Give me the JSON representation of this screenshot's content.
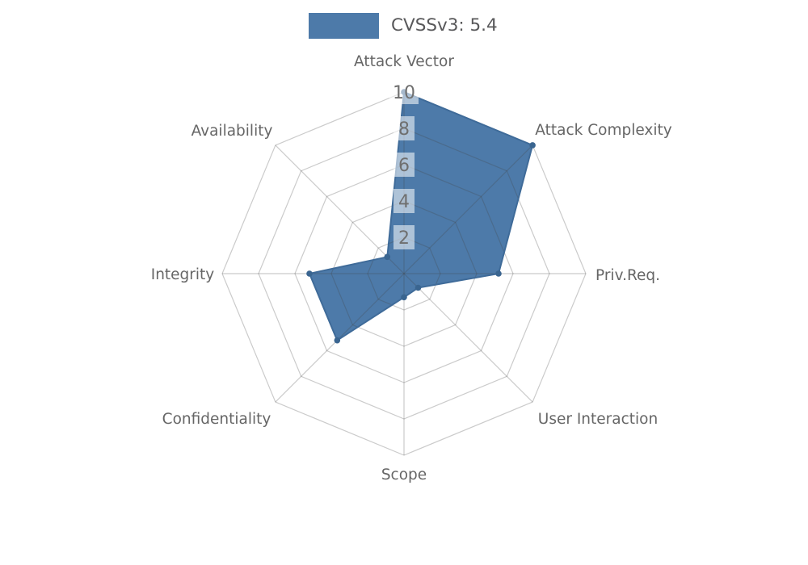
{
  "page": {
    "background": "#ffffff"
  },
  "legend": {
    "label": "CVSSv3: 5.4",
    "swatch_color": "#4d7aa9"
  },
  "chart_data": {
    "type": "radar",
    "title": "CVSSv3: 5.4",
    "categories": [
      "Attack Vector",
      "Attack Complexity",
      "Priv.Req.",
      "User Interaction",
      "Scope",
      "Confidentiality",
      "Integrity",
      "Availability"
    ],
    "series": [
      {
        "name": "CVSSv3: 5.4",
        "values": [
          10,
          10,
          5.2,
          1.1,
          1.3,
          5.2,
          5.2,
          1.3
        ]
      }
    ],
    "radial_ticks": [
      2,
      4,
      6,
      8,
      10
    ],
    "r_max": 10,
    "grid": true,
    "legend_position": "top-center",
    "colors": {
      "fill": "#4d7aa9",
      "stroke": "#3f6b99",
      "point": "#3a6590",
      "grid": "rgba(70,70,70,0.28)",
      "tick_box": "rgba(255,255,255,0.55)",
      "tick_text": "#6f6f6f",
      "label_text": "#666666",
      "legend_text": "#58585a"
    }
  }
}
